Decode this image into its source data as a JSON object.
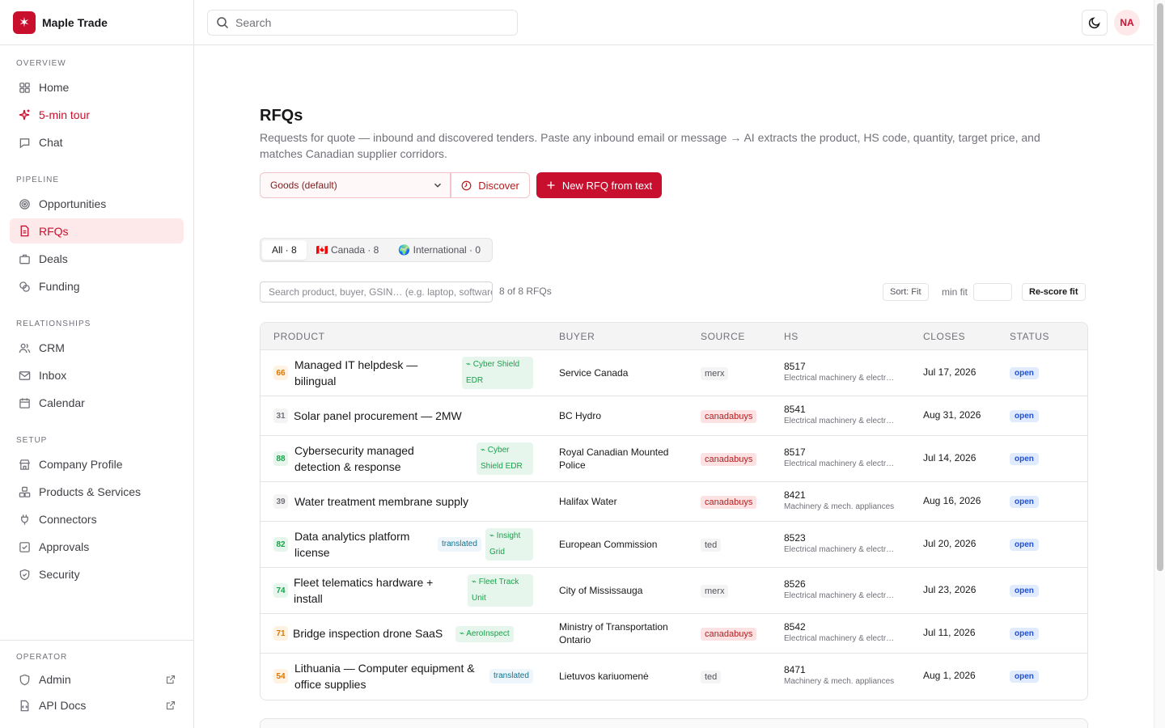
{
  "brand": {
    "name": "Maple Trade",
    "logo": "✶"
  },
  "search": {
    "placeholder": "Search"
  },
  "user": {
    "initials": "NA"
  },
  "sidebar": {
    "sections": [
      {
        "label": "OVERVIEW",
        "items": [
          {
            "label": "Home",
            "icon": "home-icon"
          },
          {
            "label": "5-min tour",
            "icon": "sparkle-icon"
          },
          {
            "label": "Chat",
            "icon": "chat-icon"
          }
        ]
      },
      {
        "label": "PIPELINE",
        "items": [
          {
            "label": "Opportunities",
            "icon": "target-icon"
          },
          {
            "label": "RFQs",
            "icon": "document-icon",
            "active": true
          },
          {
            "label": "Deals",
            "icon": "briefcase-icon"
          },
          {
            "label": "Funding",
            "icon": "coins-icon"
          }
        ]
      },
      {
        "label": "RELATIONSHIPS",
        "items": [
          {
            "label": "CRM",
            "icon": "users-icon"
          },
          {
            "label": "Inbox",
            "icon": "mail-icon"
          },
          {
            "label": "Calendar",
            "icon": "calendar-icon"
          }
        ]
      },
      {
        "label": "SETUP",
        "items": [
          {
            "label": "Company Profile",
            "icon": "store-icon"
          },
          {
            "label": "Products & Services",
            "icon": "boxes-icon"
          },
          {
            "label": "Connectors",
            "icon": "plug-icon"
          },
          {
            "label": "Approvals",
            "icon": "check-square-icon"
          },
          {
            "label": "Security",
            "icon": "shield-icon"
          }
        ]
      }
    ],
    "operator": {
      "label": "OPERATOR",
      "items": [
        {
          "label": "Admin",
          "icon": "shield-icon"
        },
        {
          "label": "API Docs",
          "icon": "file-code-icon"
        }
      ]
    }
  },
  "page": {
    "title": "RFQs",
    "description": "Requests for quote — inbound and discovered tenders. Paste any inbound email or message → AI extracts the product, HS code, quantity, target price, and matches Canadian supplier corridors."
  },
  "toolbar": {
    "select_value": "Goods (default)",
    "discover_label": "Discover",
    "new_rfq_label": "New RFQ from text"
  },
  "tabs": [
    {
      "label": "All · 8",
      "active": true
    },
    {
      "label": "🇨🇦 Canada · 8"
    },
    {
      "label": "🌍 International · 0"
    }
  ],
  "filter": {
    "placeholder": "Search product, buyer, GSIN… (e.g. laptop, software)",
    "count": "8 of 8 RFQs",
    "sort_label": "Sort: Fit",
    "min_fit_label": "min fit",
    "rescore_label": "Re-score fit"
  },
  "table": {
    "headers": [
      "PRODUCT",
      "BUYER",
      "SOURCE",
      "HS",
      "CLOSES",
      "STATUS"
    ],
    "rows": [
      {
        "fit": "66",
        "product": "Managed IT helpdesk — bilingual",
        "match": "⌁ Cyber Shield EDR",
        "translated": "",
        "buyer": "Service Canada",
        "source": "merx",
        "hs_code": "8517",
        "hs_desc": "Electrical machinery & electronics",
        "closes": "Jul 17, 2026",
        "status": "open"
      },
      {
        "fit": "31",
        "product": "Solar panel procurement — 2MW",
        "match": "",
        "translated": "",
        "buyer": "BC Hydro",
        "source": "canadabuys",
        "hs_code": "8541",
        "hs_desc": "Electrical machinery & electronics",
        "closes": "Aug 31, 2026",
        "status": "open"
      },
      {
        "fit": "88",
        "product": "Cybersecurity managed detection & response",
        "match": "⌁ Cyber Shield EDR",
        "translated": "",
        "buyer": "Royal Canadian Mounted Police",
        "source": "canadabuys",
        "hs_code": "8517",
        "hs_desc": "Electrical machinery & electronics",
        "closes": "Jul 14, 2026",
        "status": "open"
      },
      {
        "fit": "39",
        "product": "Water treatment membrane supply",
        "match": "",
        "translated": "",
        "buyer": "Halifax Water",
        "source": "canadabuys",
        "hs_code": "8421",
        "hs_desc": "Machinery & mech. appliances",
        "closes": "Aug 16, 2026",
        "status": "open"
      },
      {
        "fit": "82",
        "product": "Data analytics platform license",
        "match": "⌁ Insight Grid",
        "translated": "translated",
        "buyer": "European Commission",
        "source": "ted",
        "hs_code": "8523",
        "hs_desc": "Electrical machinery & electronics",
        "closes": "Jul 20, 2026",
        "status": "open"
      },
      {
        "fit": "74",
        "product": "Fleet telematics hardware + install",
        "match": "⌁ Fleet Track Unit",
        "translated": "",
        "buyer": "City of Mississauga",
        "source": "merx",
        "hs_code": "8526",
        "hs_desc": "Electrical machinery & electronics",
        "closes": "Jul 23, 2026",
        "status": "open"
      },
      {
        "fit": "71",
        "product": "Bridge inspection drone SaaS",
        "match": "⌁ AeroInspect",
        "translated": "",
        "buyer": "Ministry of Transportation Ontario",
        "source": "canadabuys",
        "hs_code": "8542",
        "hs_desc": "Electrical machinery & electronics",
        "closes": "Jul 11, 2026",
        "status": "open"
      },
      {
        "fit": "54",
        "product": "Lithuania — Computer equipment & office supplies",
        "match": "",
        "translated": "translated",
        "buyer": "Lietuvos kariuomenė",
        "source": "ted",
        "hs_code": "8471",
        "hs_desc": "Machinery & mech. appliances",
        "closes": "Aug 1, 2026",
        "status": "open"
      }
    ]
  },
  "colors": {
    "brand": "#c8102e",
    "status_open_bg": "#e0ecfd",
    "fit_high": "#16a34a",
    "fit_mid": "#d97706"
  }
}
